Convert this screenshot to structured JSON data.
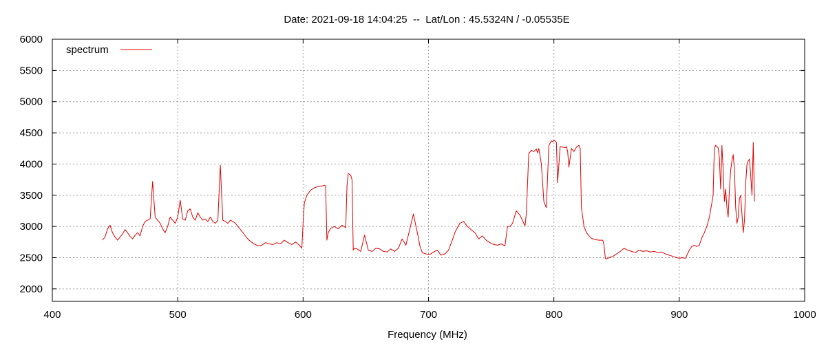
{
  "chart_data": {
    "type": "line",
    "title": "Date: 2021-09-18 14:04:25  --  Lat/Lon : 45.5324N / -0.05535E",
    "xlabel": "Frequency (MHz)",
    "ylabel": "",
    "xlim": [
      400,
      1000
    ],
    "ylim": [
      1800,
      6000
    ],
    "xticks": [
      400,
      500,
      600,
      700,
      800,
      900,
      1000
    ],
    "yticks": [
      2000,
      2500,
      3000,
      3500,
      4000,
      4500,
      5000,
      5500,
      6000
    ],
    "grid": true,
    "legend_position": "top-left",
    "series": [
      {
        "name": "spectrum",
        "color": "#e00000",
        "x": [
          440,
          442,
          444,
          446,
          448,
          450,
          452,
          454,
          456,
          458,
          460,
          462,
          464,
          466,
          468,
          470,
          472,
          474,
          476,
          478,
          480,
          482,
          484,
          486,
          488,
          490,
          492,
          494,
          496,
          498,
          500,
          502,
          504,
          506,
          508,
          510,
          512,
          514,
          516,
          518,
          520,
          522,
          524,
          526,
          528,
          530,
          532,
          534,
          536,
          538,
          540,
          542,
          544,
          546,
          548,
          550,
          552,
          555,
          558,
          561,
          564,
          567,
          570,
          573,
          576,
          579,
          582,
          585,
          588,
          591,
          594,
          597,
          599,
          600,
          601,
          603,
          606,
          609,
          612,
          615,
          617,
          618,
          619,
          620,
          622,
          625,
          628,
          631,
          634,
          635,
          636,
          638,
          639,
          640,
          641,
          643,
          646,
          649,
          652,
          655,
          658,
          661,
          664,
          667,
          670,
          673,
          676,
          679,
          682,
          685,
          688,
          690,
          692,
          693,
          695,
          698,
          701,
          704,
          707,
          710,
          713,
          716,
          719,
          721,
          723,
          725,
          728,
          731,
          734,
          737,
          740,
          743,
          746,
          749,
          752,
          755,
          758,
          761,
          763,
          765,
          767,
          770,
          773,
          776,
          777,
          778,
          780,
          782,
          784,
          786,
          787,
          788,
          790,
          792,
          794,
          796,
          798,
          799,
          800,
          801,
          802,
          803,
          805,
          807,
          809,
          810,
          811,
          812,
          814,
          816,
          818,
          820,
          821,
          822,
          824,
          826,
          828,
          830,
          833,
          836,
          839,
          840,
          841,
          842,
          844,
          847,
          850,
          853,
          856,
          859,
          862,
          865,
          868,
          871,
          874,
          877,
          880,
          883,
          886,
          889,
          892,
          895,
          898,
          900,
          902,
          905,
          908,
          910,
          912,
          914,
          916,
          918,
          920,
          922,
          924,
          926,
          927,
          928,
          929,
          930,
          931,
          932,
          933,
          934,
          935,
          936,
          937,
          938,
          939,
          940,
          941,
          942,
          943,
          944,
          945,
          946,
          947,
          948,
          949,
          950,
          951,
          952,
          953,
          954,
          955,
          956,
          957,
          958,
          959,
          960
        ],
        "y": [
          2780,
          2830,
          2960,
          3020,
          2900,
          2830,
          2780,
          2830,
          2880,
          2950,
          2900,
          2840,
          2800,
          2860,
          2900,
          2850,
          3000,
          3080,
          3100,
          3120,
          3720,
          3150,
          3100,
          3050,
          2960,
          2900,
          3000,
          3150,
          3100,
          3050,
          3150,
          3420,
          3120,
          3100,
          3250,
          3280,
          3150,
          3100,
          3220,
          3150,
          3100,
          3120,
          3080,
          3150,
          3080,
          3050,
          3100,
          3980,
          3100,
          3080,
          3050,
          3100,
          3080,
          3050,
          3000,
          2950,
          2900,
          2820,
          2760,
          2720,
          2690,
          2700,
          2740,
          2720,
          2710,
          2740,
          2720,
          2780,
          2740,
          2710,
          2750,
          2700,
          2650,
          3050,
          3380,
          3500,
          3580,
          3620,
          3640,
          3650,
          3660,
          3650,
          2780,
          2900,
          2970,
          3000,
          2960,
          3020,
          2980,
          3650,
          3850,
          3820,
          3750,
          2620,
          2650,
          2640,
          2600,
          2860,
          2620,
          2600,
          2650,
          2640,
          2600,
          2590,
          2640,
          2600,
          2650,
          2800,
          2700,
          2950,
          3200,
          3000,
          2820,
          2700,
          2580,
          2560,
          2550,
          2590,
          2620,
          2540,
          2560,
          2620,
          2780,
          2900,
          2980,
          3050,
          3080,
          3000,
          2950,
          2900,
          2800,
          2850,
          2780,
          2740,
          2710,
          2700,
          2720,
          2690,
          3000,
          3000,
          3050,
          3250,
          3180,
          3050,
          3010,
          3200,
          4170,
          4220,
          4200,
          4240,
          4180,
          4250,
          4000,
          3400,
          3300,
          4300,
          4370,
          4360,
          4380,
          4370,
          4350,
          3700,
          4280,
          4270,
          4260,
          4280,
          4200,
          3950,
          4250,
          4200,
          4270,
          4300,
          4250,
          3300,
          3000,
          2900,
          2850,
          2810,
          2790,
          2780,
          2780,
          2700,
          2490,
          2480,
          2500,
          2520,
          2560,
          2600,
          2650,
          2620,
          2600,
          2580,
          2620,
          2600,
          2610,
          2590,
          2600,
          2580,
          2590,
          2560,
          2540,
          2520,
          2500,
          2490,
          2500,
          2490,
          2620,
          2680,
          2700,
          2680,
          2700,
          2820,
          2900,
          3000,
          3150,
          3380,
          3500,
          4250,
          4300,
          4280,
          4260,
          4100,
          3600,
          4300,
          3900,
          3400,
          3600,
          3300,
          3150,
          3600,
          3900,
          4050,
          4150,
          3900,
          3300,
          3050,
          3150,
          3450,
          3500,
          3200,
          2900,
          3100,
          3700,
          4000,
          4050,
          4080,
          3800,
          3500,
          4350,
          3400
        ]
      }
    ]
  }
}
